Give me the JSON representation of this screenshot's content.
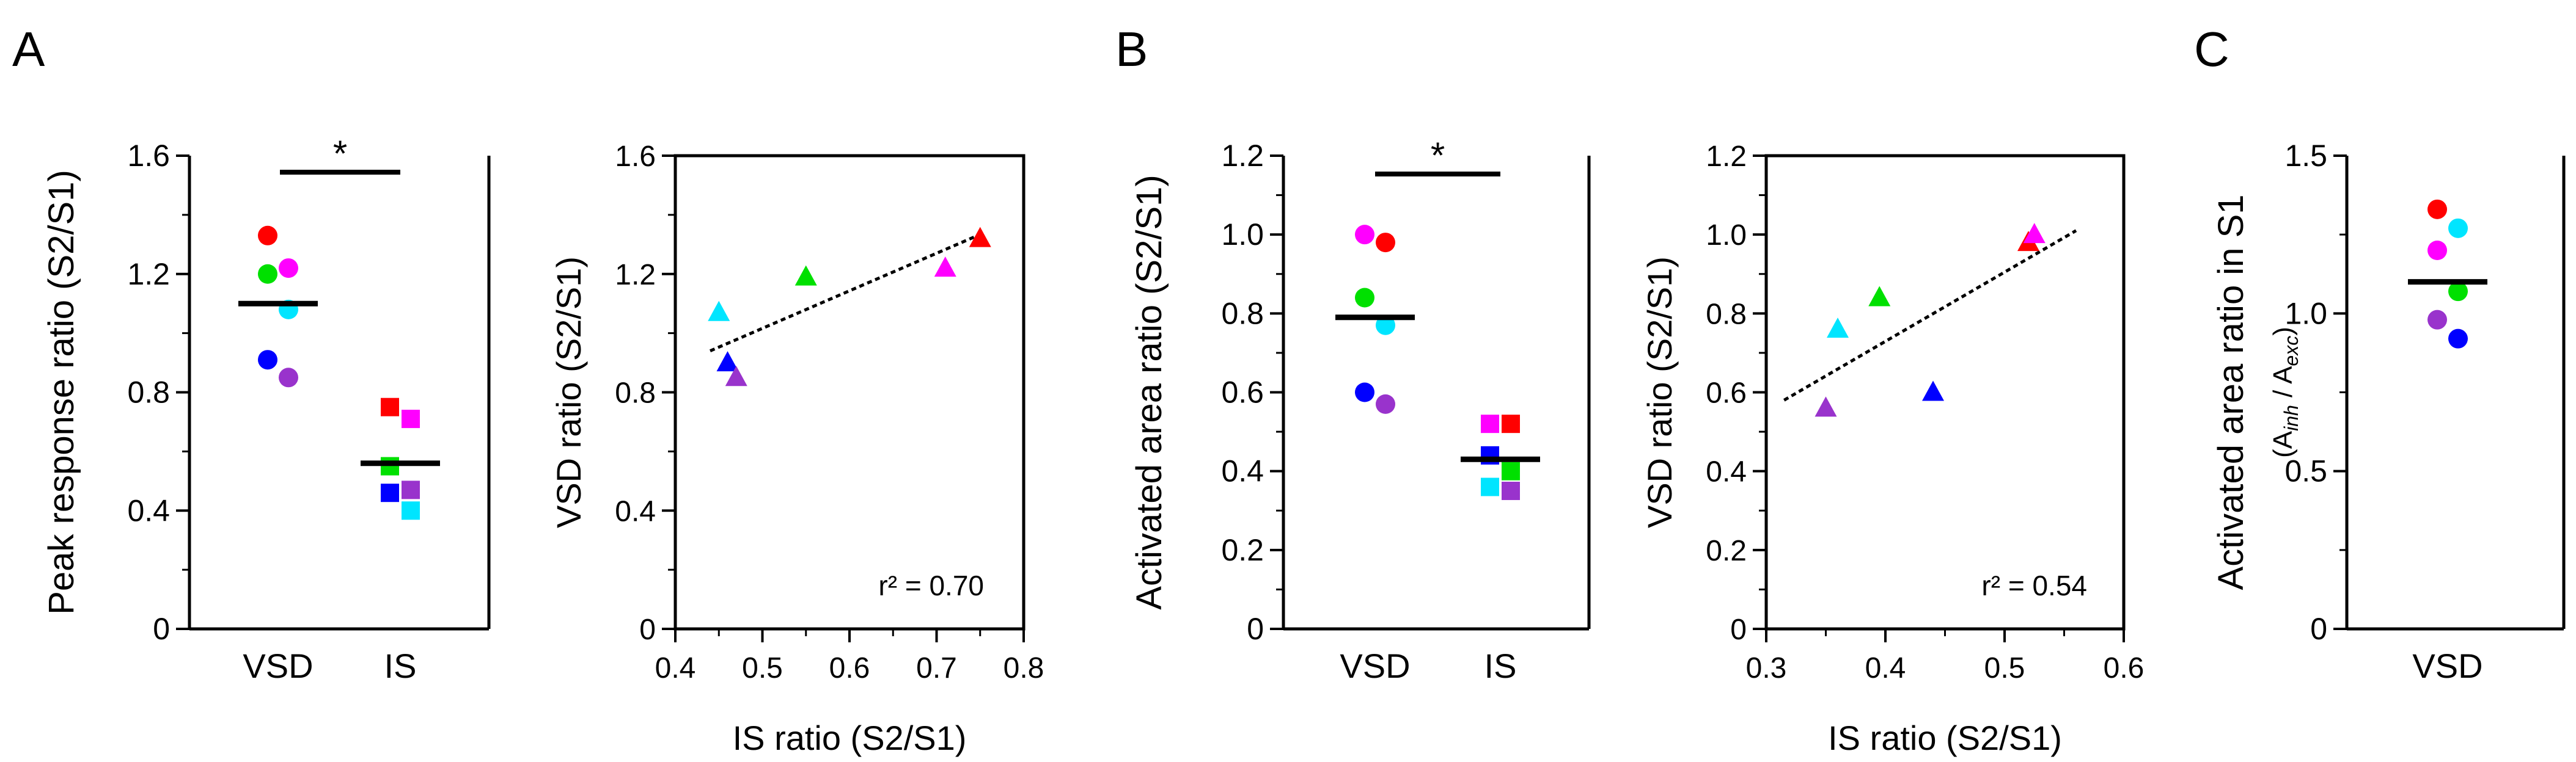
{
  "panel_labels": {
    "a": "A",
    "b": "B",
    "c": "C"
  },
  "colors": {
    "red": "#ff0000",
    "magenta": "#ff00ff",
    "green": "#00e000",
    "cyan": "#00e5ff",
    "blue": "#0000ff",
    "purple": "#9933cc",
    "black": "#000000"
  },
  "chart_data": [
    {
      "id": "A1",
      "type": "scatter",
      "ylabel": "Peak response ratio (S2/S1)",
      "categories": [
        "VSD",
        "IS"
      ],
      "ylim": [
        0,
        1.6
      ],
      "yticks": [
        "0",
        "0.4",
        "0.8",
        "1.2",
        "1.6"
      ],
      "significance": "*",
      "groups": [
        {
          "category": "VSD",
          "marker": "circle",
          "mean": 1.1,
          "points": [
            {
              "color": "red",
              "value": 1.33
            },
            {
              "color": "magenta",
              "value": 1.22
            },
            {
              "color": "green",
              "value": 1.2
            },
            {
              "color": "cyan",
              "value": 1.08
            },
            {
              "color": "blue",
              "value": 0.91
            },
            {
              "color": "purple",
              "value": 0.85
            }
          ]
        },
        {
          "category": "IS",
          "marker": "square",
          "mean": 0.56,
          "points": [
            {
              "color": "red",
              "value": 0.75
            },
            {
              "color": "magenta",
              "value": 0.71
            },
            {
              "color": "green",
              "value": 0.55
            },
            {
              "color": "purple",
              "value": 0.47
            },
            {
              "color": "blue",
              "value": 0.46
            },
            {
              "color": "cyan",
              "value": 0.4
            }
          ]
        }
      ]
    },
    {
      "id": "A2",
      "type": "scatter",
      "xlabel": "IS ratio (S2/S1)",
      "ylabel": "VSD ratio (S2/S1)",
      "xlim": [
        0.4,
        0.8
      ],
      "ylim": [
        0,
        1.6
      ],
      "xticks": [
        "0.4",
        "0.5",
        "0.6",
        "0.7",
        "0.8"
      ],
      "yticks": [
        "0",
        "0.4",
        "0.8",
        "1.2",
        "1.6"
      ],
      "annotation": "r² = 0.70",
      "fit_line": {
        "x": [
          0.44,
          0.755
        ],
        "y": [
          0.94,
          1.34
        ]
      },
      "points": [
        {
          "color": "cyan",
          "x": 0.45,
          "y": 1.07
        },
        {
          "color": "blue",
          "x": 0.46,
          "y": 0.9
        },
        {
          "color": "purple",
          "x": 0.47,
          "y": 0.85
        },
        {
          "color": "green",
          "x": 0.55,
          "y": 1.19
        },
        {
          "color": "magenta",
          "x": 0.71,
          "y": 1.22
        },
        {
          "color": "red",
          "x": 0.75,
          "y": 1.32
        }
      ]
    },
    {
      "id": "B1",
      "type": "scatter",
      "ylabel": "Activated area ratio (S2/S1)",
      "categories": [
        "VSD",
        "IS"
      ],
      "ylim": [
        0,
        1.2
      ],
      "yticks": [
        "0",
        "0.2",
        "0.4",
        "0.6",
        "0.8",
        "1.0",
        "1.2"
      ],
      "significance": "*",
      "groups": [
        {
          "category": "VSD",
          "marker": "circle",
          "mean": 0.79,
          "points": [
            {
              "color": "magenta",
              "value": 1.0
            },
            {
              "color": "red",
              "value": 0.98
            },
            {
              "color": "green",
              "value": 0.84
            },
            {
              "color": "cyan",
              "value": 0.77
            },
            {
              "color": "blue",
              "value": 0.6
            },
            {
              "color": "purple",
              "value": 0.57
            }
          ]
        },
        {
          "category": "IS",
          "marker": "square",
          "mean": 0.43,
          "points": [
            {
              "color": "magenta",
              "value": 0.52
            },
            {
              "color": "red",
              "value": 0.52
            },
            {
              "color": "blue",
              "value": 0.44
            },
            {
              "color": "green",
              "value": 0.4
            },
            {
              "color": "cyan",
              "value": 0.36
            },
            {
              "color": "purple",
              "value": 0.35
            }
          ]
        }
      ]
    },
    {
      "id": "B2",
      "type": "scatter",
      "xlabel": "IS ratio (S2/S1)",
      "ylabel": "VSD ratio (S2/S1)",
      "xlim": [
        0.3,
        0.6
      ],
      "ylim": [
        0,
        1.2
      ],
      "xticks": [
        "0.3",
        "0.4",
        "0.5",
        "0.6"
      ],
      "yticks": [
        "0",
        "0.2",
        "0.4",
        "0.6",
        "0.8",
        "1.0",
        "1.2"
      ],
      "annotation": "r² = 0.54",
      "fit_line": {
        "x": [
          0.315,
          0.56
        ],
        "y": [
          0.58,
          1.01
        ]
      },
      "points": [
        {
          "color": "purple",
          "x": 0.35,
          "y": 0.56
        },
        {
          "color": "cyan",
          "x": 0.36,
          "y": 0.76
        },
        {
          "color": "green",
          "x": 0.395,
          "y": 0.84
        },
        {
          "color": "blue",
          "x": 0.44,
          "y": 0.6
        },
        {
          "color": "red",
          "x": 0.52,
          "y": 0.98
        },
        {
          "color": "magenta",
          "x": 0.525,
          "y": 1.0
        }
      ]
    },
    {
      "id": "C",
      "type": "scatter",
      "ylabel": "Activated area ratio in S1",
      "ylabel2": {
        "open": "(A",
        "sub1": "inh",
        "mid": " / A",
        "sub2": "exc",
        "close": ")"
      },
      "categories": [
        "VSD"
      ],
      "ylim": [
        0,
        1.5
      ],
      "yticks": [
        "0",
        "0.5",
        "1.0",
        "1.5"
      ],
      "groups": [
        {
          "category": "VSD",
          "marker": "circle",
          "mean": 1.1,
          "points": [
            {
              "color": "red",
              "value": 1.33
            },
            {
              "color": "cyan",
              "value": 1.27
            },
            {
              "color": "magenta",
              "value": 1.2
            },
            {
              "color": "green",
              "value": 1.07
            },
            {
              "color": "purple",
              "value": 0.98
            },
            {
              "color": "blue",
              "value": 0.92
            }
          ]
        }
      ]
    }
  ]
}
